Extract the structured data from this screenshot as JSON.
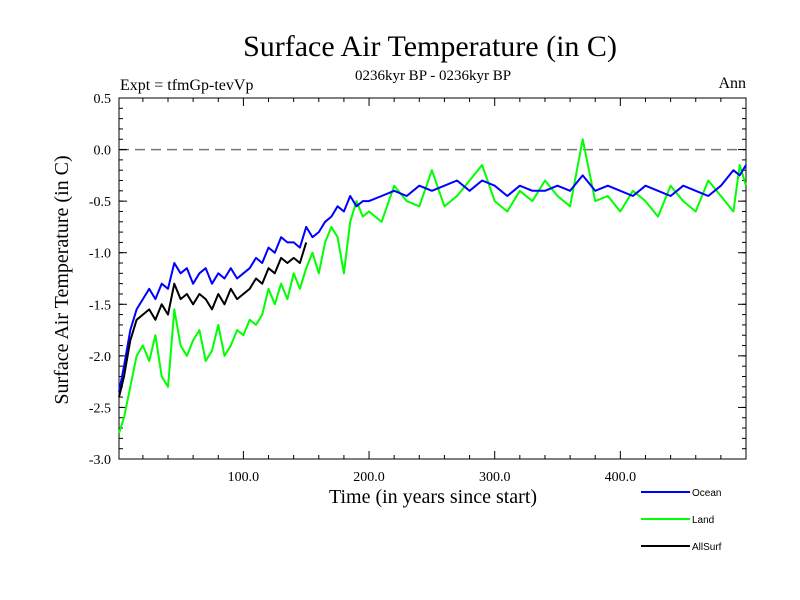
{
  "chart_data": {
    "type": "line",
    "title": "Surface Air Temperature (in C)",
    "subtitle": "0236kyr BP - 0236kyr BP",
    "experiment_label": "Expt = tfmGp-tevVp",
    "season_label": "Ann",
    "xlabel": "Time (in years since start)",
    "ylabel": "Surface Air Temperature (in C)",
    "xlim": [
      1,
      500
    ],
    "ylim": [
      -3.0,
      0.5
    ],
    "x_ticks": [
      100,
      200,
      300,
      400
    ],
    "x_tick_labels": [
      "100.0",
      "200.0",
      "300.0",
      "400.0"
    ],
    "y_ticks": [
      0.5,
      0.0,
      -0.5,
      -1.0,
      -1.5,
      -2.0,
      -2.5,
      -3.0
    ],
    "y_tick_labels": [
      "0.5",
      "0.0",
      "-0.5",
      "-1.0",
      "-1.5",
      "-2.0",
      "-2.5",
      "-3.0"
    ],
    "reference_line": {
      "y": 0.0,
      "style": "dashed"
    },
    "grid": false,
    "legend_position": "below-right",
    "series": [
      {
        "name": "Ocean",
        "color": "#0000ff",
        "x": [
          1,
          5,
          10,
          15,
          20,
          25,
          30,
          35,
          40,
          45,
          50,
          55,
          60,
          65,
          70,
          75,
          80,
          85,
          90,
          95,
          100,
          105,
          110,
          115,
          120,
          125,
          130,
          135,
          140,
          145,
          150,
          155,
          160,
          165,
          170,
          175,
          180,
          185,
          190,
          195,
          200,
          210,
          220,
          230,
          240,
          250,
          260,
          270,
          280,
          290,
          300,
          310,
          320,
          330,
          340,
          350,
          360,
          370,
          380,
          390,
          400,
          410,
          420,
          430,
          440,
          450,
          460,
          470,
          480,
          490,
          495,
          500
        ],
        "y": [
          -2.35,
          -2.1,
          -1.75,
          -1.55,
          -1.45,
          -1.35,
          -1.45,
          -1.3,
          -1.35,
          -1.1,
          -1.2,
          -1.15,
          -1.3,
          -1.2,
          -1.15,
          -1.3,
          -1.2,
          -1.25,
          -1.15,
          -1.25,
          -1.2,
          -1.15,
          -1.05,
          -1.1,
          -0.95,
          -1.0,
          -0.85,
          -0.9,
          -0.9,
          -0.95,
          -0.75,
          -0.85,
          -0.8,
          -0.7,
          -0.65,
          -0.55,
          -0.6,
          -0.45,
          -0.55,
          -0.5,
          -0.5,
          -0.45,
          -0.4,
          -0.45,
          -0.35,
          -0.4,
          -0.35,
          -0.3,
          -0.4,
          -0.3,
          -0.35,
          -0.45,
          -0.35,
          -0.4,
          -0.4,
          -0.35,
          -0.4,
          -0.25,
          -0.4,
          -0.35,
          -0.4,
          -0.45,
          -0.35,
          -0.4,
          -0.45,
          -0.35,
          -0.4,
          -0.45,
          -0.35,
          -0.2,
          -0.25,
          -0.15
        ]
      },
      {
        "name": "Land",
        "color": "#00ff00",
        "x": [
          1,
          5,
          10,
          15,
          20,
          25,
          30,
          35,
          40,
          45,
          50,
          55,
          60,
          65,
          70,
          75,
          80,
          85,
          90,
          95,
          100,
          105,
          110,
          115,
          120,
          125,
          130,
          135,
          140,
          145,
          150,
          155,
          160,
          165,
          170,
          175,
          180,
          185,
          190,
          195,
          200,
          210,
          220,
          230,
          240,
          250,
          260,
          270,
          280,
          290,
          300,
          310,
          320,
          330,
          340,
          350,
          360,
          370,
          380,
          390,
          400,
          410,
          420,
          430,
          440,
          450,
          460,
          470,
          480,
          490,
          495,
          500
        ],
        "y": [
          -2.75,
          -2.6,
          -2.3,
          -2.0,
          -1.9,
          -2.05,
          -1.8,
          -2.2,
          -2.3,
          -1.55,
          -1.9,
          -2.0,
          -1.85,
          -1.75,
          -2.05,
          -1.95,
          -1.7,
          -2.0,
          -1.9,
          -1.75,
          -1.8,
          -1.65,
          -1.7,
          -1.6,
          -1.35,
          -1.5,
          -1.3,
          -1.45,
          -1.2,
          -1.35,
          -1.15,
          -1.0,
          -1.2,
          -0.9,
          -0.75,
          -0.85,
          -1.2,
          -0.7,
          -0.5,
          -0.65,
          -0.6,
          -0.7,
          -0.35,
          -0.5,
          -0.55,
          -0.2,
          -0.55,
          -0.45,
          -0.3,
          -0.15,
          -0.5,
          -0.6,
          -0.4,
          -0.5,
          -0.3,
          -0.45,
          -0.55,
          0.1,
          -0.5,
          -0.45,
          -0.6,
          -0.4,
          -0.5,
          -0.65,
          -0.35,
          -0.5,
          -0.6,
          -0.3,
          -0.45,
          -0.6,
          -0.15,
          -0.35
        ]
      },
      {
        "name": "AllSurf",
        "color": "#000000",
        "x": [
          1,
          5,
          10,
          15,
          20,
          25,
          30,
          35,
          40,
          45,
          50,
          55,
          60,
          65,
          70,
          75,
          80,
          85,
          90,
          95,
          100,
          105,
          110,
          115,
          120,
          125,
          130,
          135,
          140,
          145,
          150
        ],
        "y": [
          -2.4,
          -2.2,
          -1.85,
          -1.65,
          -1.6,
          -1.55,
          -1.65,
          -1.5,
          -1.6,
          -1.3,
          -1.45,
          -1.4,
          -1.5,
          -1.4,
          -1.45,
          -1.55,
          -1.4,
          -1.5,
          -1.35,
          -1.45,
          -1.4,
          -1.35,
          -1.25,
          -1.3,
          -1.15,
          -1.2,
          -1.05,
          -1.1,
          -1.05,
          -1.1,
          -0.9
        ]
      }
    ]
  }
}
